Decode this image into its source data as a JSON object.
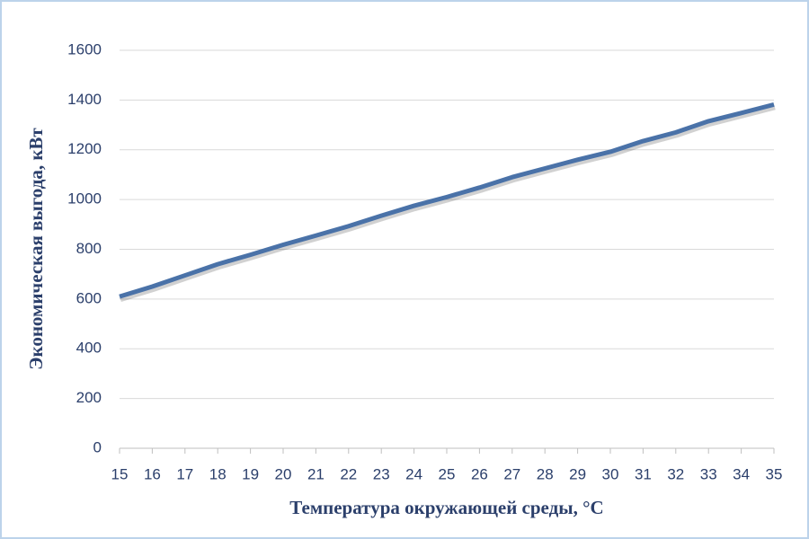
{
  "chart_data": {
    "type": "line",
    "x_label": "Температура окружающей среды, °C",
    "y_label": "Экономическая выгода, кВт",
    "x": [
      15,
      16,
      17,
      18,
      19,
      20,
      21,
      22,
      23,
      24,
      25,
      26,
      27,
      28,
      29,
      30,
      31,
      32,
      33,
      34,
      35
    ],
    "series": [
      {
        "name": "Экономическая выгода",
        "color": "#4a72a8",
        "values": [
          610,
          650,
          695,
          740,
          778,
          818,
          855,
          893,
          935,
          975,
          1010,
          1048,
          1090,
          1125,
          1160,
          1192,
          1235,
          1270,
          1315,
          1348,
          1382
        ]
      }
    ],
    "xlim": [
      15,
      35
    ],
    "xticks": [
      15,
      16,
      17,
      18,
      19,
      20,
      21,
      22,
      23,
      24,
      25,
      26,
      27,
      28,
      29,
      30,
      31,
      32,
      33,
      34,
      35
    ],
    "ylim": [
      0,
      1600
    ],
    "yticks": [
      0,
      200,
      400,
      600,
      800,
      1000,
      1200,
      1400,
      1600
    ],
    "grid": true
  }
}
